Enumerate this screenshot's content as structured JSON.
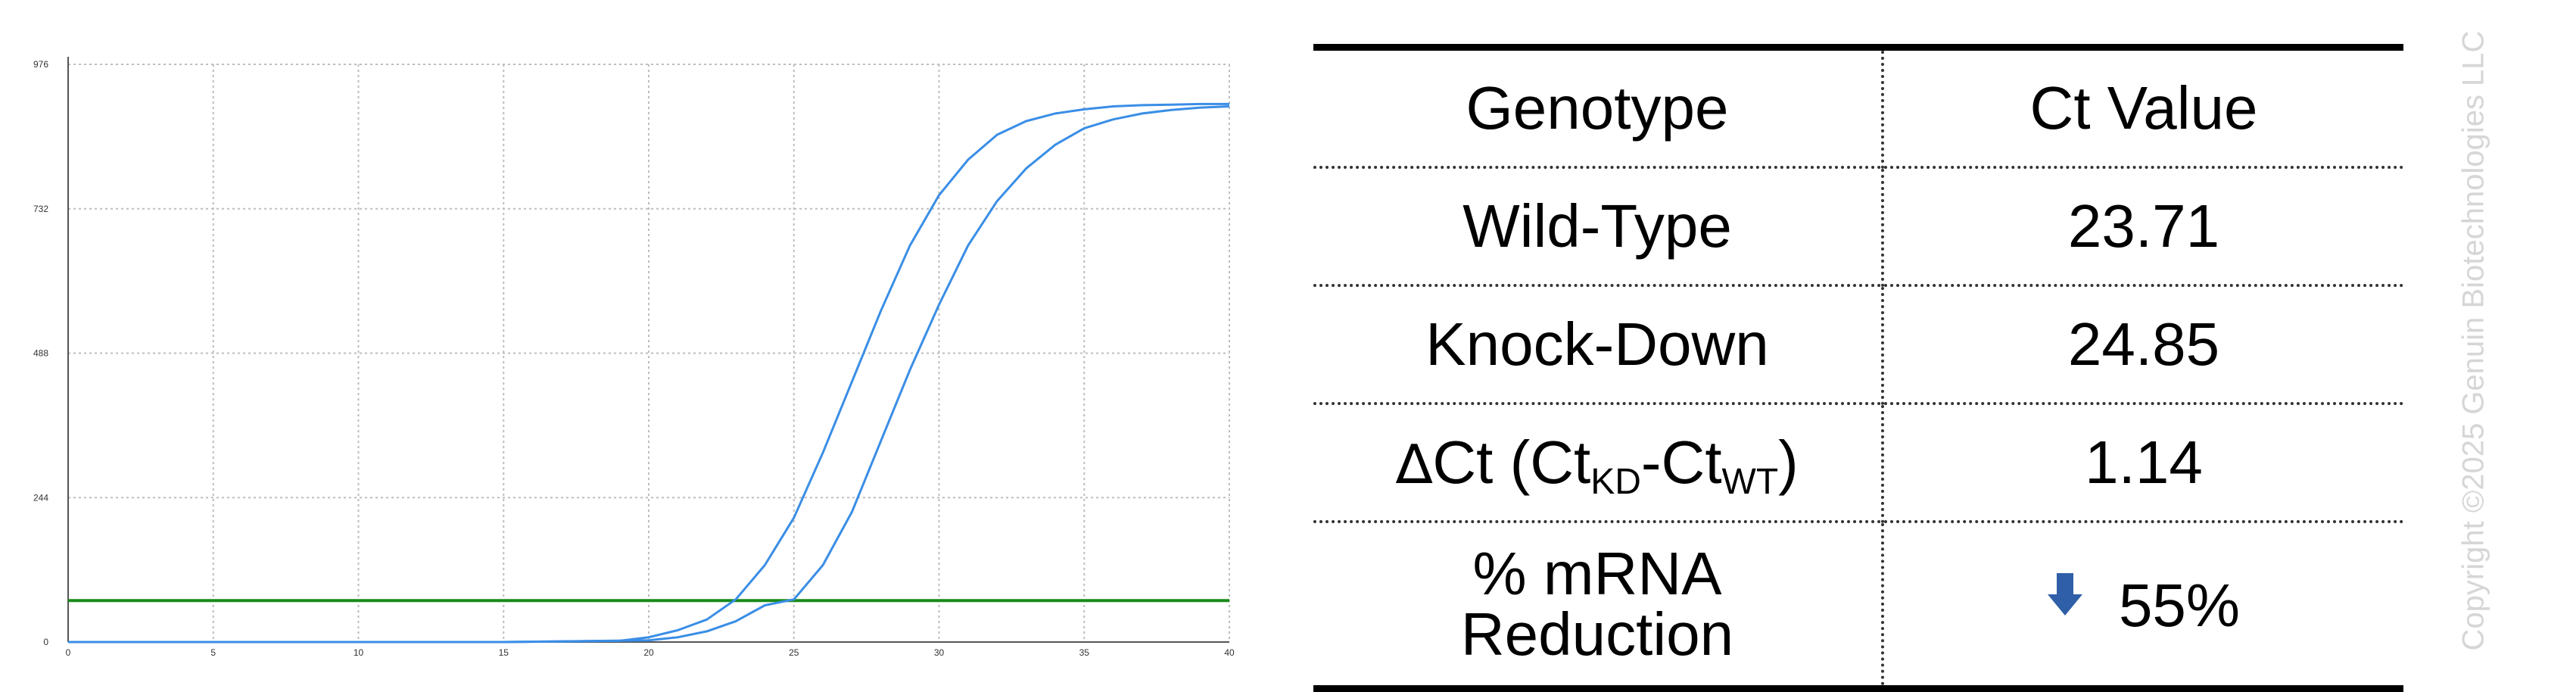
{
  "chart_data": {
    "type": "line",
    "title": "",
    "xlabel": "",
    "ylabel": "",
    "xlim": [
      0,
      40
    ],
    "ylim": [
      0,
      976
    ],
    "x_ticks": [
      "0",
      "5",
      "10",
      "15",
      "20",
      "25",
      "30",
      "35",
      "40"
    ],
    "y_ticks": [
      "0",
      "244",
      "488",
      "732",
      "976"
    ],
    "grid": true,
    "threshold": {
      "value": 70,
      "color": "#1a8a1a"
    },
    "series": [
      {
        "color": "#3a8ee6",
        "x": [
          0,
          5,
          10,
          15,
          19,
          20,
          21,
          22,
          23,
          24,
          25,
          26,
          27,
          28,
          29,
          30,
          31,
          32,
          33,
          34,
          35,
          36,
          37,
          38,
          39,
          40
        ],
        "y": [
          0,
          0,
          0,
          0,
          2,
          8,
          20,
          38,
          72,
          130,
          210,
          320,
          440,
          560,
          670,
          755,
          815,
          857,
          880,
          893,
          900,
          905,
          907,
          908,
          909,
          909
        ]
      },
      {
        "color": "#3a8ee6",
        "x": [
          0,
          5,
          10,
          15,
          20,
          21,
          22,
          23,
          24,
          25,
          26,
          27,
          28,
          29,
          30,
          31,
          32,
          33,
          34,
          35,
          36,
          37,
          38,
          39,
          40
        ],
        "y": [
          0,
          0,
          0,
          0,
          3,
          8,
          18,
          35,
          62,
          72,
          130,
          220,
          340,
          460,
          570,
          670,
          745,
          800,
          840,
          868,
          883,
          893,
          899,
          903,
          905
        ]
      }
    ]
  },
  "table": {
    "header": {
      "genotype": "Genotype",
      "ct": "Ct Value"
    },
    "wild_type": {
      "label": "Wild-Type",
      "value": "23.71"
    },
    "knock_down": {
      "label": "Knock-Down",
      "value": "24.85"
    },
    "delta_ct": {
      "delta": "∆",
      "ct": "Ct (Ct",
      "sub_kd": "KD",
      "dash": "-Ct",
      "sub_wt": "WT",
      "close": ")",
      "value": "1.14"
    },
    "reduction": {
      "line1": "% mRNA",
      "line2": "Reduction",
      "value": "55%",
      "arrow_icon": "down-arrow-icon",
      "arrow_color": "#2f5fa8"
    }
  },
  "copyright": "Copyright ©2025 Genuin Biotechnologies LLC"
}
